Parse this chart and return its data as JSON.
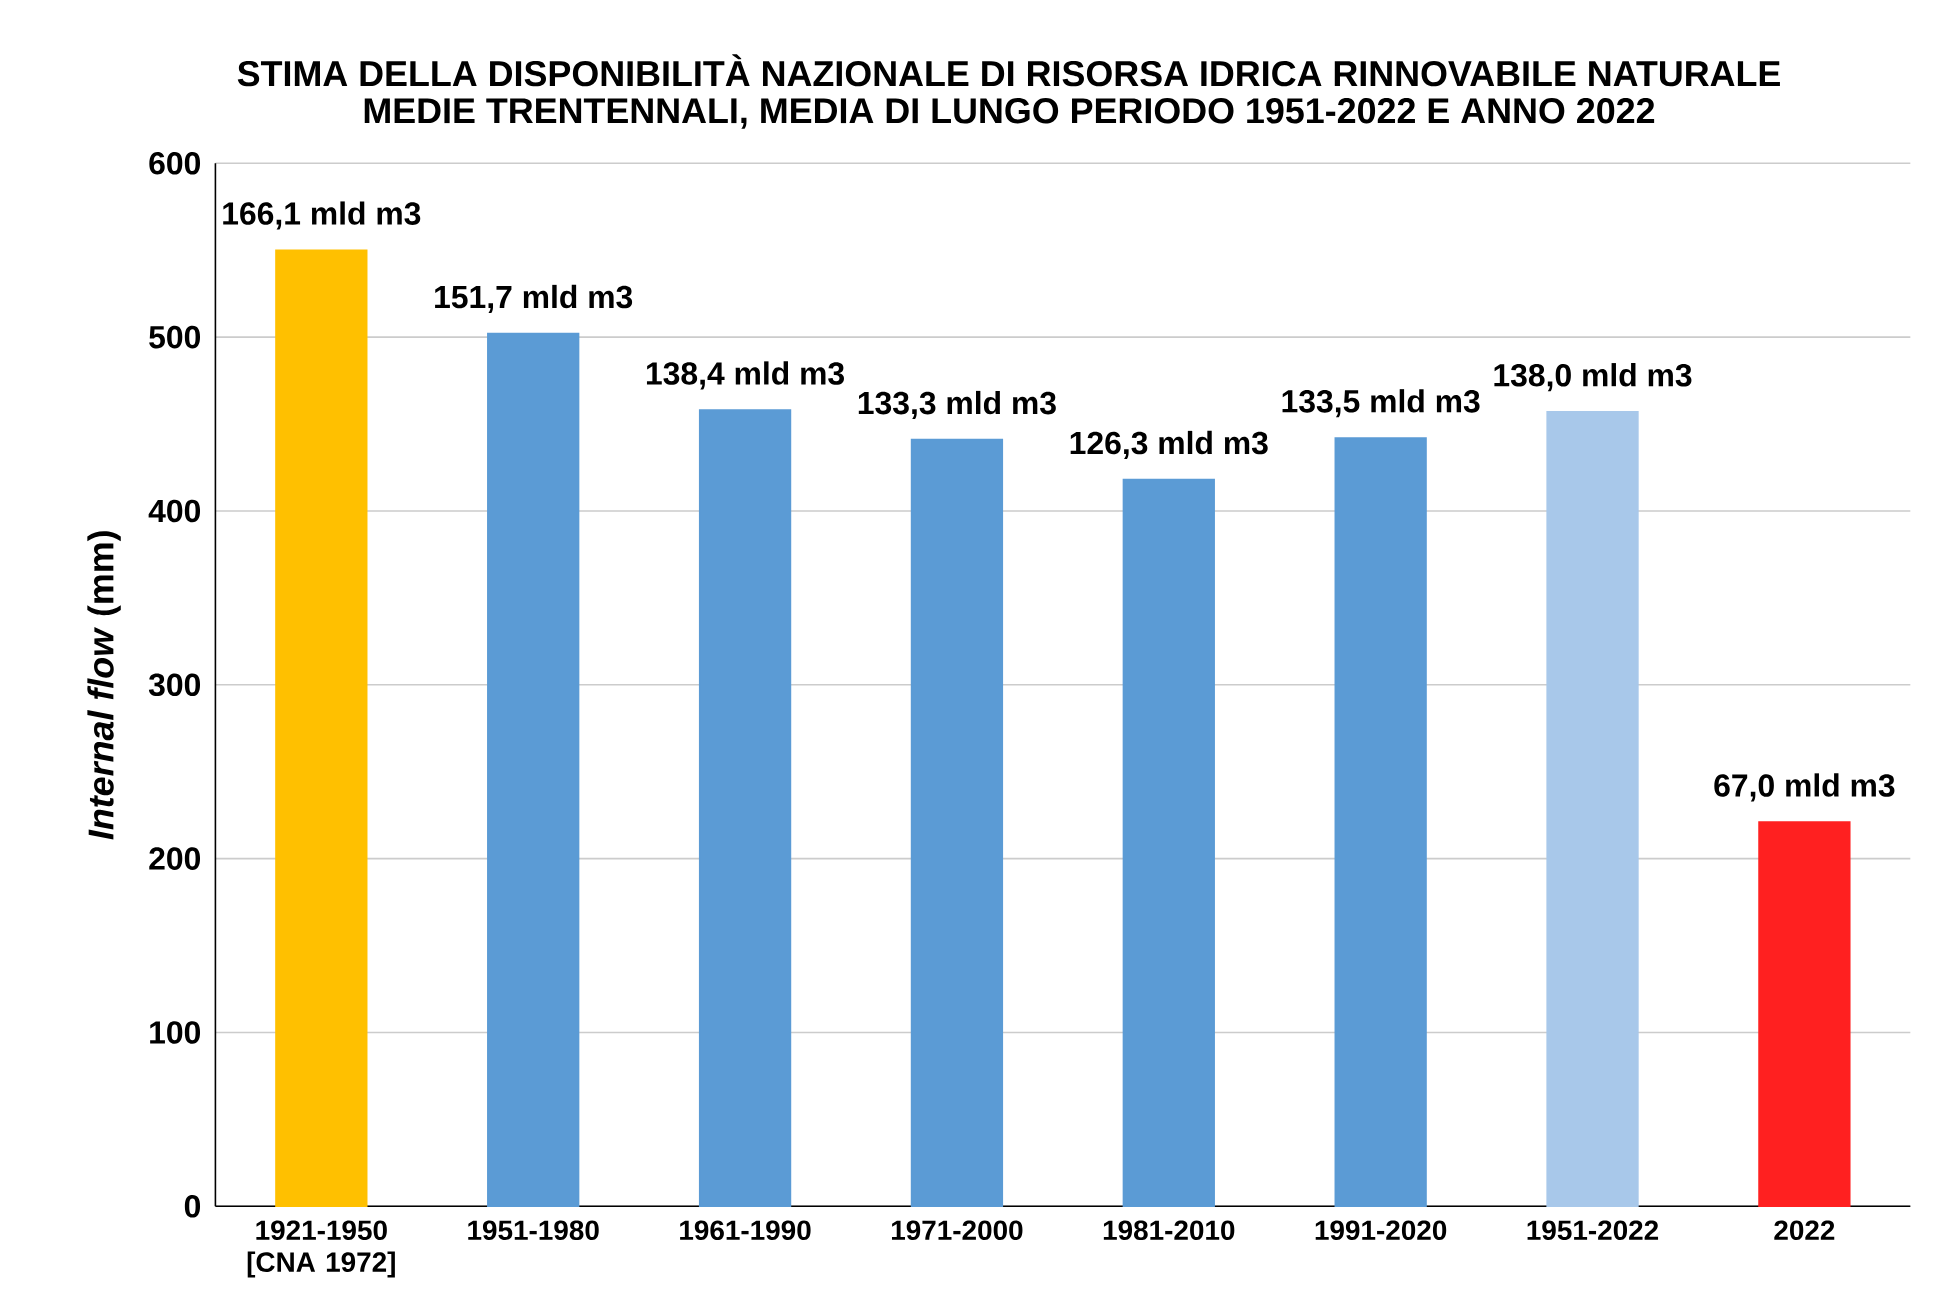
{
  "chart_data": {
    "type": "bar",
    "title": "STIMA DELLA DISPONIBILITÀ NAZIONALE DI RISORSA IDRICA RINNOVABILE NATURALE",
    "subtitle": "MEDIE TRENTENNALI, MEDIA DI LUNGO PERIODO 1951-2022 E ANNO 2022",
    "ylabel": "*Internal flow* (mm)",
    "categories": [
      "1921-1950 [CNA 1972]",
      "1951-1980",
      "1961-1990",
      "1971-2000",
      "1981-2010",
      "1991-2020",
      "1951-2022",
      "2022"
    ],
    "values": [
      550,
      502,
      458,
      441,
      418,
      442,
      457,
      221
    ],
    "colors": [
      "#ffc000",
      "#5b9bd5",
      "#5b9bd5",
      "#5b9bd5",
      "#5b9bd5",
      "#5b9bd5",
      "#a8c8ea",
      "#ff2020"
    ],
    "annotations": [
      {
        "text": "166,1 mld m3",
        "x": "1921-1950 [CNA 1972]",
        "y": 550
      },
      {
        "text": "151,7 mld m3",
        "x": "1951-1980",
        "y": 502
      },
      {
        "text": "138,4 mld m3",
        "x": "1961-1990",
        "y": 458
      },
      {
        "text": "133,3 mld m3",
        "x": "1971-2000",
        "y": 441
      },
      {
        "text": "126,3 mld m3",
        "x": "1981-2010",
        "y": 418
      },
      {
        "text": "133,5 mld m3",
        "x": "1991-2020",
        "y": 442
      },
      {
        "text": "138,0 mld m3",
        "x": "1951-2022",
        "y": 457
      },
      {
        "text": "67,0 mld m3",
        "x": "2022",
        "y": 221
      }
    ],
    "ylim": [
      0,
      600
    ],
    "yticks": [
      0,
      100,
      200,
      300,
      400,
      500,
      600
    ],
    "grid": "y"
  }
}
